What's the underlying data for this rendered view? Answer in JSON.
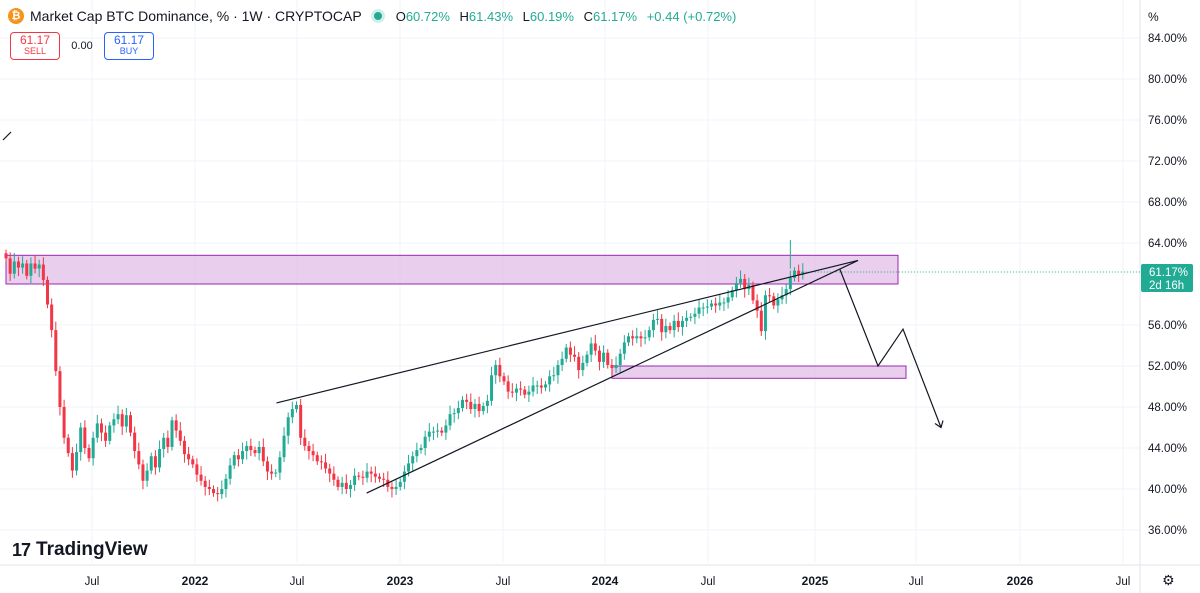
{
  "header": {
    "icon_letter": "₿",
    "title": "Market Cap BTC Dominance, % · 1W · CRYPTOCAP",
    "open_label": "O",
    "open": "60.72%",
    "high_label": "H",
    "high": "61.43%",
    "low_label": "L",
    "low": "60.19%",
    "close_label": "C",
    "close": "61.17%",
    "change": "+0.44 (+0.72%)"
  },
  "trade": {
    "sell_price": "61.17",
    "sell_label": "SELL",
    "spread": "0.00",
    "buy_price": "61.17",
    "buy_label": "BUY"
  },
  "logo": {
    "text": "TradingView"
  },
  "colors": {
    "up": "#22ab94",
    "down": "#f23645",
    "zone_fill": "#e1bee7",
    "zone_stroke": "#9c27b0",
    "price_label_bg": "#22ab94"
  },
  "chart_data": {
    "type": "candlestick",
    "axis_unit": "%",
    "y_ticks": [
      "84.00%",
      "80.00%",
      "76.00%",
      "72.00%",
      "68.00%",
      "64.00%",
      "56.00%",
      "52.00%",
      "48.00%",
      "44.00%",
      "40.00%",
      "36.00%"
    ],
    "x_ticks": [
      "Jul",
      "2022",
      "Jul",
      "2023",
      "Jul",
      "2024",
      "Jul",
      "2025",
      "Jul",
      "2026",
      "Jul"
    ],
    "ylim": [
      32.5,
      86.5
    ],
    "last_price_label": "61.17%",
    "countdown_label": "2d 16h",
    "last_price": 61.17,
    "closes": [
      62.5,
      61.0,
      62.2,
      61.6,
      62.0,
      60.8,
      62.0,
      61.5,
      61.9,
      60.4,
      58.0,
      55.5,
      51.5,
      48.0,
      45.0,
      43.5,
      41.8,
      43.6,
      46.0,
      44.0,
      43.0,
      45.0,
      46.4,
      45.5,
      44.7,
      46.2,
      46.8,
      47.3,
      46.1,
      47.2,
      45.5,
      43.7,
      42.4,
      40.8,
      41.8,
      43.2,
      42.1,
      43.9,
      45.0,
      44.1,
      46.7,
      45.7,
      44.7,
      43.4,
      42.9,
      42.4,
      41.4,
      40.8,
      40.2,
      40.0,
      39.6,
      39.5,
      40.0,
      41.0,
      42.3,
      43.3,
      42.9,
      43.7,
      44.2,
      43.8,
      43.5,
      44.1,
      42.7,
      41.7,
      41.5,
      41.6,
      43.1,
      45.2,
      47.0,
      47.8,
      48.2,
      45.0,
      44.2,
      43.7,
      43.3,
      42.7,
      42.6,
      42.0,
      41.5,
      40.9,
      40.2,
      40.6,
      40.0,
      40.4,
      41.3,
      41.2,
      41.1,
      41.7,
      41.5,
      41.2,
      41.0,
      40.9,
      40.2,
      40.0,
      40.2,
      40.7,
      41.7,
      42.5,
      43.2,
      43.8,
      44.0,
      45.1,
      45.6,
      45.6,
      45.7,
      45.5,
      46.2,
      47.3,
      47.4,
      47.9,
      48.7,
      48.5,
      47.8,
      48.3,
      47.6,
      48.1,
      48.6,
      51.1,
      52.1,
      51.0,
      50.5,
      49.5,
      49.4,
      49.8,
      49.7,
      49.2,
      49.5,
      50.1,
      50.1,
      49.9,
      50.2,
      51.0,
      51.1,
      52.1,
      52.7,
      53.8,
      53.1,
      52.9,
      51.6,
      52.3,
      53.1,
      54.2,
      53.5,
      52.4,
      53.3,
      52.1,
      51.8,
      52.1,
      53.2,
      54.3,
      54.9,
      54.7,
      54.9,
      54.7,
      54.8,
      55.5,
      56.5,
      56.6,
      55.3,
      55.9,
      55.5,
      56.4,
      55.8,
      56.4,
      56.7,
      56.8,
      57.1,
      57.7,
      57.7,
      57.8,
      58.1,
      57.9,
      58.2,
      58.2,
      58.7,
      59.4,
      60.1,
      60.5,
      59.5,
      59.9,
      58.4,
      57.4,
      55.4,
      58.9,
      58.8,
      57.9,
      58.5,
      58.9,
      59.5,
      60.6,
      61.3,
      60.9,
      61.2
    ],
    "highs_lows": "wicks extend beyond bodies; notable spike high near 64.2% in early 2025",
    "zones": [
      {
        "top": 62.8,
        "bottom": 60.0,
        "label": ""
      },
      {
        "top": 52.0,
        "bottom": 50.8,
        "label": ""
      }
    ],
    "trendlines": [
      {
        "from": [
          "Jun 2022",
          48.4
        ],
        "to": [
          "Feb 2025",
          62.3
        ]
      },
      {
        "from": [
          "Nov 2022",
          39.6
        ],
        "to": [
          "Feb 2025",
          62.3
        ]
      }
    ],
    "projection": [
      [
        "Feb 2025",
        61.4
      ],
      [
        "May 2025",
        52.0
      ],
      [
        "Jun 2025",
        55.6
      ],
      [
        "Jul 2025",
        46.0
      ]
    ]
  }
}
